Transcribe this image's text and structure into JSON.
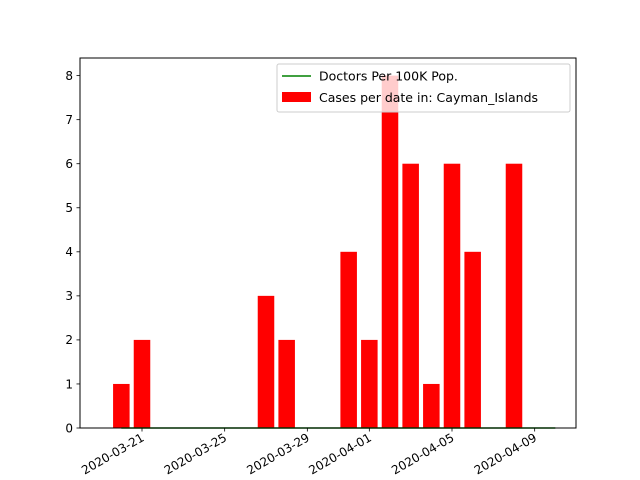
{
  "chart_data": {
    "type": "bar",
    "title": "",
    "xlabel": "",
    "ylabel": "",
    "x_is_date": true,
    "xlim": [
      "2020-03-18",
      "2020-04-11"
    ],
    "ylim": [
      0,
      8.4
    ],
    "yticks": [
      0,
      1,
      2,
      3,
      4,
      5,
      6,
      7,
      8
    ],
    "xticks": [
      "2020-03-21",
      "2020-03-25",
      "2020-03-29",
      "2020-04-01",
      "2020-04-05",
      "2020-04-09"
    ],
    "grid": false,
    "legend_position": "top-right",
    "series": [
      {
        "name": "Cases per date in: Cayman_Islands",
        "type": "bar",
        "color": "#ff0000",
        "points": [
          {
            "date": "2020-03-20",
            "value": 1
          },
          {
            "date": "2020-03-21",
            "value": 2
          },
          {
            "date": "2020-03-27",
            "value": 3
          },
          {
            "date": "2020-03-28",
            "value": 2
          },
          {
            "date": "2020-03-31",
            "value": 4
          },
          {
            "date": "2020-04-01",
            "value": 2
          },
          {
            "date": "2020-04-02",
            "value": 8
          },
          {
            "date": "2020-04-03",
            "value": 6
          },
          {
            "date": "2020-04-04",
            "value": 1
          },
          {
            "date": "2020-04-05",
            "value": 6
          },
          {
            "date": "2020-04-06",
            "value": 4
          },
          {
            "date": "2020-04-08",
            "value": 6
          }
        ]
      },
      {
        "name": "Doctors Per 100K Pop.",
        "type": "line",
        "color": "#008000",
        "points": [
          {
            "date": "2020-03-20",
            "value": 0
          },
          {
            "date": "2020-04-10",
            "value": 0
          }
        ]
      }
    ]
  }
}
